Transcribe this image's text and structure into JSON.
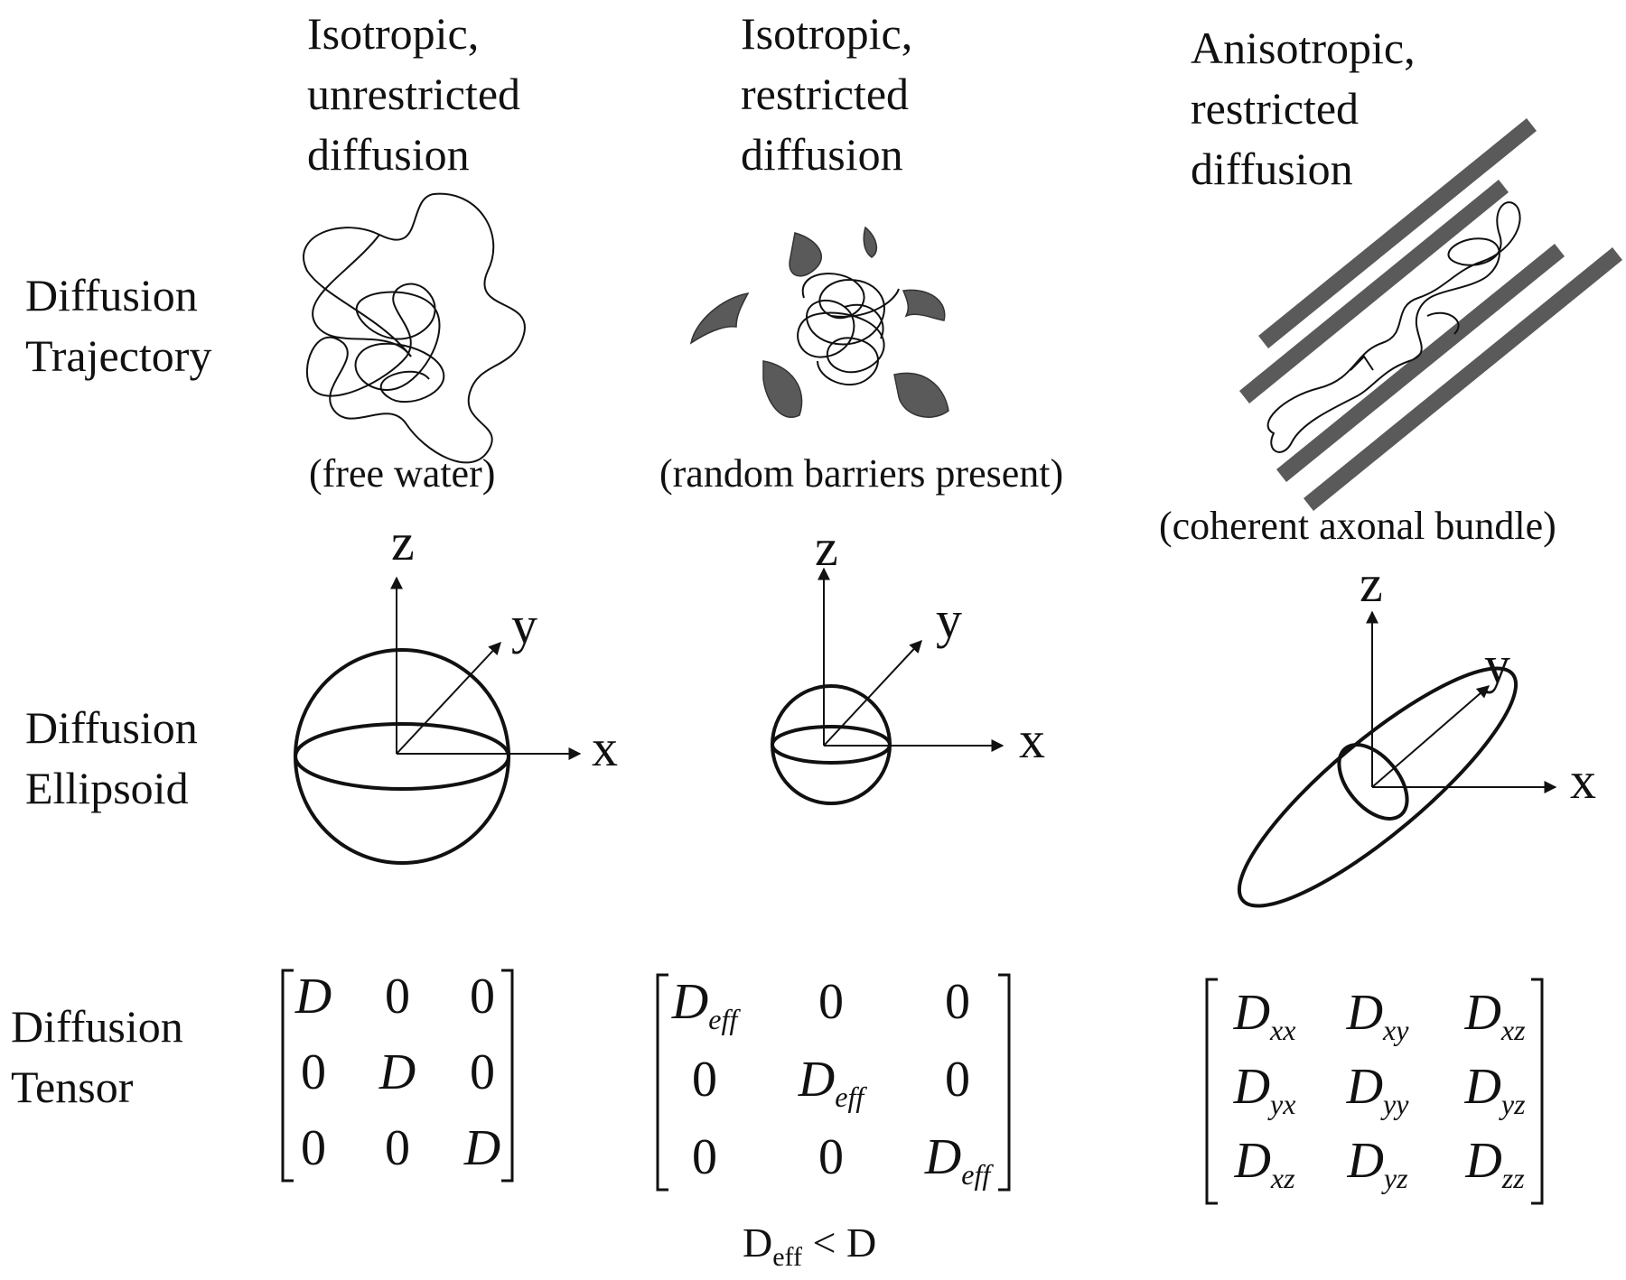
{
  "columns": [
    {
      "title": [
        "Isotropic,",
        "unrestricted",
        "diffusion"
      ],
      "caption": "(free water)"
    },
    {
      "title": [
        "Isotropic,",
        "restricted",
        "diffusion"
      ],
      "caption": "(random barriers present)"
    },
    {
      "title": [
        "Anisotropic,",
        "restricted",
        "diffusion"
      ],
      "caption": "(coherent axonal bundle)"
    }
  ],
  "rows": [
    {
      "label": [
        "Diffusion",
        "Trajectory"
      ]
    },
    {
      "label": [
        "Diffusion",
        "Ellipsoid"
      ]
    },
    {
      "label": [
        "Diffusion",
        "Tensor"
      ]
    }
  ],
  "axes": {
    "x": "x",
    "y": "y",
    "z": "z"
  },
  "tensors": {
    "isotropic_unrestricted": [
      [
        "D",
        "0",
        "0"
      ],
      [
        "0",
        "D",
        "0"
      ],
      [
        "0",
        "0",
        "D"
      ]
    ],
    "isotropic_restricted": {
      "diag_base": "D",
      "diag_sub": "eff",
      "zero": "0"
    },
    "anisotropic": {
      "base": "D",
      "subs": [
        [
          "xx",
          "xy",
          "xz"
        ],
        [
          "yx",
          "yy",
          "yz"
        ],
        [
          "xz",
          "yz",
          "zz"
        ]
      ]
    }
  },
  "condition": {
    "left": "D",
    "left_sub": "eff",
    "op": "<",
    "right": "D"
  },
  "colors": {
    "ink": "#111111",
    "barrier": "#5a5a5a"
  }
}
